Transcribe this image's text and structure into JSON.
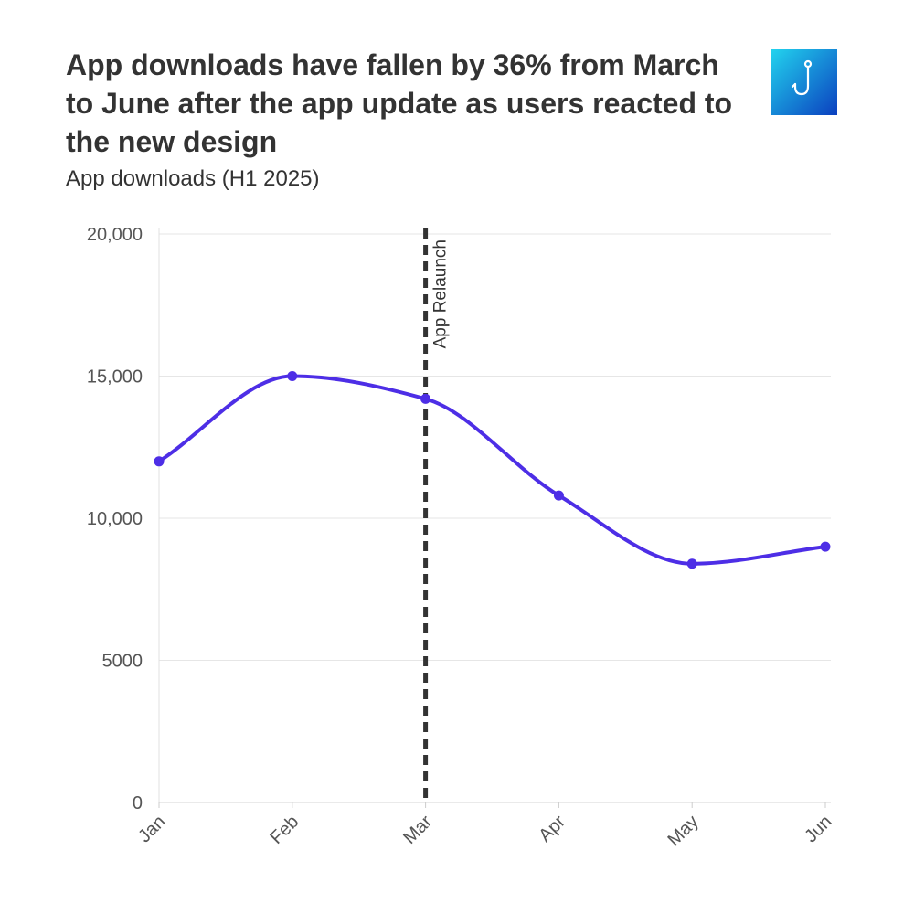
{
  "header": {
    "title": "App downloads have fallen by 36% from March to June after the app update as users reacted to the new design",
    "subtitle": "App downloads (H1 2025)"
  },
  "logo": {
    "icon": "fishing-hook-icon",
    "gradient": [
      "#22d3ee",
      "#0b3fbf"
    ]
  },
  "chart_data": {
    "type": "line",
    "title": "App downloads have fallen by 36% from March to June after the app update as users reacted to the new design",
    "subtitle": "App downloads (H1 2025)",
    "xlabel": "",
    "ylabel": "",
    "categories": [
      "Jan",
      "Feb",
      "Mar",
      "Apr",
      "May",
      "Jun"
    ],
    "values": [
      12000,
      15000,
      14200,
      10800,
      8400,
      9000
    ],
    "ylim": [
      0,
      20000
    ],
    "y_ticks": [
      0,
      5000,
      10000,
      15000,
      20000
    ],
    "y_tick_labels": [
      "0",
      "5000",
      "10,000",
      "15,000",
      "20,000"
    ],
    "grid": true,
    "curve": "smooth",
    "line_color": "#4d2ee6",
    "annotation": {
      "label": "App Relaunch",
      "at": "Mar",
      "style": "dashed",
      "color": "#333333"
    }
  }
}
